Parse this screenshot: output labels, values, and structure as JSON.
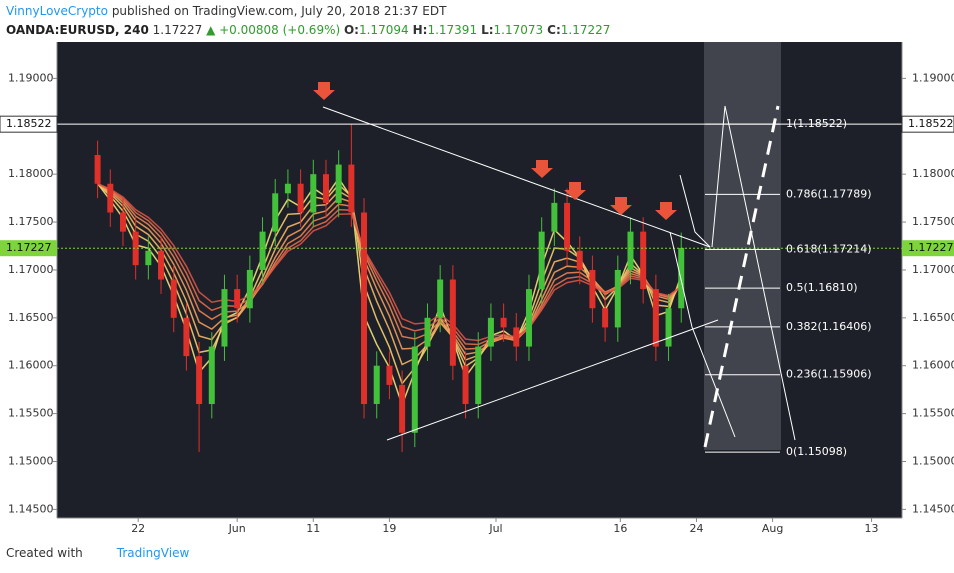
{
  "header": {
    "author": "VinnyLoveCrypto",
    "published": "published on TradingView.com, July 20, 2018 21:37 EDT",
    "symbol": "OANDA:EURUSD, 240",
    "last": "1.17227",
    "change": "+0.00808 (+0.69%)",
    "ohlc": [
      {
        "label": "O:",
        "value": "1.17094"
      },
      {
        "label": "H:",
        "value": "1.17391"
      },
      {
        "label": "L:",
        "value": "1.17073"
      },
      {
        "label": "C:",
        "value": "1.17227"
      }
    ]
  },
  "chart_data": {
    "type": "candlestick",
    "x": [
      0,
      5,
      10,
      15,
      20,
      25,
      30,
      35,
      40,
      45,
      50,
      55,
      60,
      65,
      70,
      75,
      80,
      85,
      90,
      95,
      100,
      105,
      110,
      115,
      120,
      125,
      130,
      135,
      140,
      145,
      150,
      155,
      160,
      165,
      170,
      175,
      180,
      185,
      190,
      195,
      200,
      205,
      210,
      215,
      220,
      225,
      230
    ],
    "open": [
      1.182,
      1.179,
      1.176,
      1.174,
      1.1705,
      1.172,
      1.169,
      1.165,
      1.161,
      1.156,
      1.162,
      1.168,
      1.166,
      1.17,
      1.174,
      1.178,
      1.179,
      1.176,
      1.18,
      1.177,
      1.181,
      1.176,
      1.156,
      1.16,
      1.158,
      1.153,
      1.162,
      1.165,
      1.169,
      1.16,
      1.156,
      1.162,
      1.165,
      1.164,
      1.162,
      1.168,
      1.174,
      1.177,
      1.172,
      1.17,
      1.166,
      1.164,
      1.17,
      1.174,
      1.168,
      1.162,
      1.166
    ],
    "high": [
      1.1835,
      1.1805,
      1.1775,
      1.1755,
      1.1735,
      1.1735,
      1.1705,
      1.1665,
      1.1625,
      1.1635,
      1.1695,
      1.1695,
      1.1715,
      1.1755,
      1.1795,
      1.1805,
      1.1805,
      1.1815,
      1.1815,
      1.1825,
      1.1852,
      1.1775,
      1.1615,
      1.1615,
      1.1595,
      1.1635,
      1.1665,
      1.1705,
      1.1705,
      1.1615,
      1.1635,
      1.1665,
      1.1665,
      1.1655,
      1.1695,
      1.1755,
      1.1785,
      1.1785,
      1.1735,
      1.1715,
      1.1675,
      1.1715,
      1.1755,
      1.1755,
      1.1695,
      1.1675,
      1.1739
    ],
    "low": [
      1.1775,
      1.1745,
      1.1725,
      1.169,
      1.169,
      1.1675,
      1.1635,
      1.1595,
      1.151,
      1.1545,
      1.1605,
      1.1645,
      1.1645,
      1.1685,
      1.1725,
      1.1765,
      1.1745,
      1.1745,
      1.1755,
      1.1755,
      1.1745,
      1.1545,
      1.1545,
      1.1565,
      1.151,
      1.1515,
      1.1605,
      1.1635,
      1.1585,
      1.1545,
      1.1545,
      1.1605,
      1.1625,
      1.1605,
      1.1605,
      1.1665,
      1.1725,
      1.1705,
      1.1685,
      1.1645,
      1.1625,
      1.1625,
      1.1685,
      1.1665,
      1.1605,
      1.1605,
      1.1645
    ],
    "close": [
      1.179,
      1.176,
      1.174,
      1.1705,
      1.172,
      1.169,
      1.165,
      1.161,
      1.156,
      1.162,
      1.168,
      1.166,
      1.17,
      1.174,
      1.178,
      1.179,
      1.176,
      1.18,
      1.177,
      1.181,
      1.176,
      1.156,
      1.16,
      1.158,
      1.153,
      1.162,
      1.165,
      1.169,
      1.16,
      1.156,
      1.162,
      1.165,
      1.164,
      1.162,
      1.168,
      1.174,
      1.177,
      1.172,
      1.17,
      1.166,
      1.164,
      1.17,
      1.174,
      1.168,
      1.162,
      1.166,
      1.1723
    ],
    "up_color": "#43c13a",
    "down_color": "#e0302a",
    "xlim": [
      -16,
      317
    ],
    "xticks": [
      {
        "value": 16,
        "label": "22"
      },
      {
        "value": 55,
        "label": "Jun"
      },
      {
        "value": 85,
        "label": "11"
      },
      {
        "value": 115,
        "label": "19"
      },
      {
        "value": 157,
        "label": "Jul"
      },
      {
        "value": 206,
        "label": "16"
      },
      {
        "value": 236,
        "label": "24"
      },
      {
        "value": 266,
        "label": "Aug"
      },
      {
        "value": 305,
        "label": "13"
      }
    ],
    "ylim": [
      1.1441,
      1.1938
    ],
    "yticks": [
      {
        "value": 1.19,
        "label": "1.19000"
      },
      {
        "value": 1.185,
        "label": "1.18500"
      },
      {
        "value": 1.18,
        "label": "1.18000"
      },
      {
        "value": 1.175,
        "label": "1.17500"
      },
      {
        "value": 1.17,
        "label": "1.17000"
      },
      {
        "value": 1.165,
        "label": "1.16500"
      },
      {
        "value": 1.16,
        "label": "1.16000"
      },
      {
        "value": 1.155,
        "label": "1.15500"
      },
      {
        "value": 1.15,
        "label": "1.15000"
      },
      {
        "value": 1.145,
        "label": "1.14500"
      }
    ],
    "high_line": {
      "value": 1.18522,
      "label": "1.18522"
    },
    "price_line": {
      "value": 1.17227,
      "color": "#7dd43b"
    },
    "fib_levels": [
      {
        "value": 1.18522,
        "label": "1(1.18522)"
      },
      {
        "value": 1.17789,
        "label": "0.786(1.17789)"
      },
      {
        "value": 1.17214,
        "label": "0.618(1.17214)"
      },
      {
        "value": 1.1681,
        "label": "0.5(1.16810)"
      },
      {
        "value": 1.16406,
        "label": "0.382(1.16406)"
      },
      {
        "value": 1.15906,
        "label": "0.236(1.15906)"
      },
      {
        "value": 1.15098,
        "label": "0(1.15098)"
      }
    ]
  },
  "footer": {
    "created": "Created with",
    "brand": "TradingView"
  }
}
